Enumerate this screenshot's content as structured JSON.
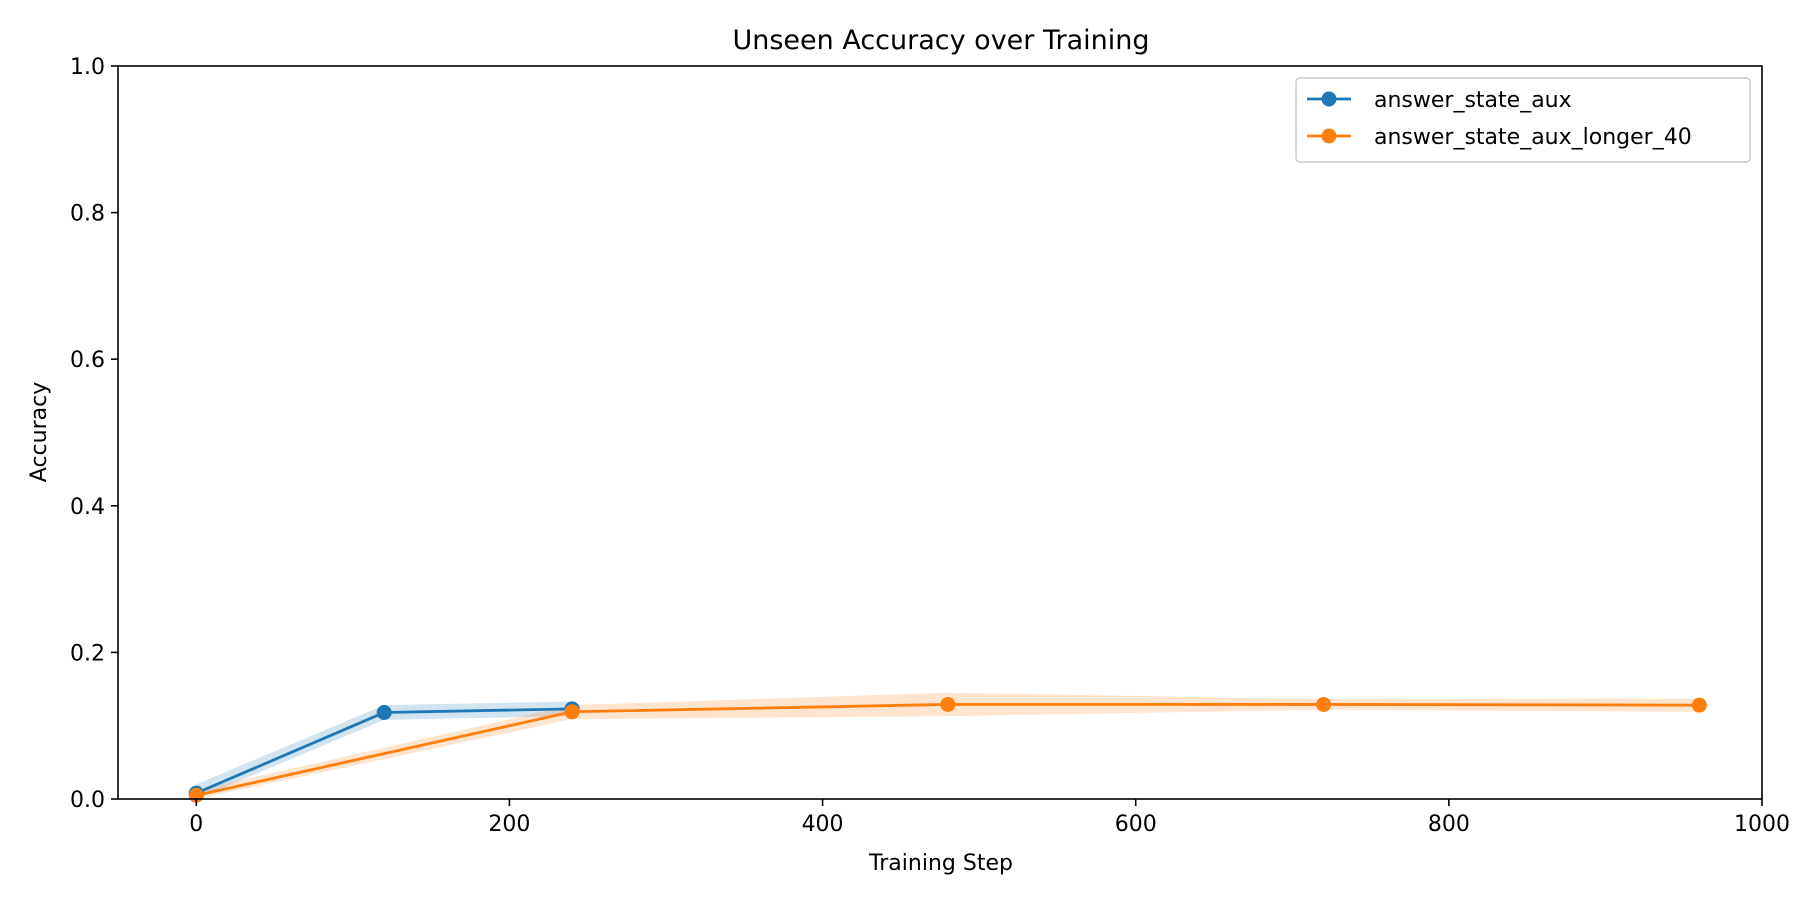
{
  "chart_data": {
    "type": "line",
    "title": "Unseen Accuracy over Training",
    "xlabel": "Training Step",
    "ylabel": "Accuracy",
    "xlim": [
      -50,
      1000
    ],
    "ylim": [
      0,
      1.0
    ],
    "xticks": [
      0,
      200,
      400,
      600,
      800,
      1000
    ],
    "xtick_labels": [
      "0",
      "200",
      "400",
      "600",
      "800",
      "1000"
    ],
    "yticks": [
      0.0,
      0.2,
      0.4,
      0.6,
      0.8,
      1.0
    ],
    "ytick_labels": [
      "0.0",
      "0.2",
      "0.4",
      "0.6",
      "0.8",
      "1.0"
    ],
    "grid": false,
    "legend_position": "top-right",
    "series": [
      {
        "name": "answer_state_aux",
        "color": "#1f77b4",
        "x": [
          0,
          120,
          240
        ],
        "y": [
          0.008,
          0.118,
          0.123
        ],
        "lower": [
          0.0,
          0.108,
          0.113
        ],
        "upper": [
          0.02,
          0.128,
          0.133
        ]
      },
      {
        "name": "answer_state_aux_longer_40",
        "color": "#ff7f0e",
        "x": [
          0,
          240,
          480,
          720,
          960
        ],
        "y": [
          0.005,
          0.119,
          0.129,
          0.129,
          0.128
        ],
        "lower": [
          0.0,
          0.109,
          0.113,
          0.122,
          0.119
        ],
        "upper": [
          0.012,
          0.128,
          0.145,
          0.136,
          0.137
        ]
      }
    ]
  }
}
